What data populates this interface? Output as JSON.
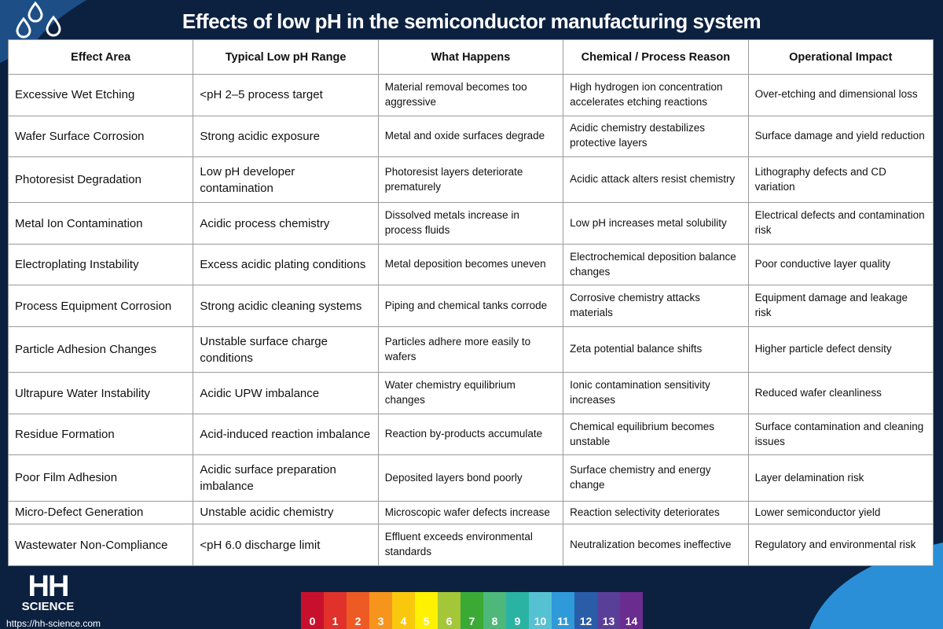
{
  "header": {
    "title": "Effects of low pH in the semiconductor manufacturing system"
  },
  "table": {
    "columns": [
      "Effect Area",
      "Typical Low pH Range",
      "What Happens",
      "Chemical / Process Reason",
      "Operational Impact"
    ],
    "rows": [
      [
        "Excessive Wet Etching",
        "<pH 2–5 process target",
        "Material removal becomes too aggressive",
        "High hydrogen ion concentration accelerates etching reactions",
        "Over-etching and dimensional loss"
      ],
      [
        "Wafer Surface Corrosion",
        "Strong acidic exposure",
        "Metal and oxide surfaces degrade",
        "Acidic chemistry destabilizes protective layers",
        "Surface damage and yield reduction"
      ],
      [
        "Photoresist Degradation",
        "Low pH developer contamination",
        "Photoresist layers deteriorate prematurely",
        "Acidic attack alters resist chemistry",
        "Lithography defects and CD variation"
      ],
      [
        "Metal Ion Contamination",
        "Acidic process chemistry",
        "Dissolved metals increase in process fluids",
        "Low pH increases metal solubility",
        "Electrical defects and contamination risk"
      ],
      [
        "Electroplating Instability",
        "Excess acidic plating conditions",
        "Metal deposition becomes uneven",
        "Electrochemical deposition balance changes",
        "Poor conductive layer quality"
      ],
      [
        "Process Equipment Corrosion",
        "Strong acidic cleaning systems",
        "Piping and chemical tanks corrode",
        "Corrosive chemistry attacks materials",
        "Equipment damage and leakage risk"
      ],
      [
        "Particle Adhesion Changes",
        "Unstable surface charge conditions",
        "Particles adhere more easily to wafers",
        "Zeta potential balance shifts",
        "Higher particle defect density"
      ],
      [
        "Ultrapure Water Instability",
        "Acidic UPW imbalance",
        "Water chemistry equilibrium changes",
        "Ionic contamination sensitivity increases",
        "Reduced wafer cleanliness"
      ],
      [
        "Residue Formation",
        "Acid-induced reaction imbalance",
        "Reaction by-products accumulate",
        "Chemical equilibrium becomes unstable",
        "Surface contamination and cleaning issues"
      ],
      [
        "Poor Film Adhesion",
        "Acidic surface preparation imbalance",
        "Deposited layers bond poorly",
        "Surface chemistry and energy change",
        "Layer delamination risk"
      ],
      [
        "Micro-Defect Generation",
        "Unstable acidic chemistry",
        "Microscopic wafer defects increase",
        "Reaction selectivity deteriorates",
        "Lower semiconductor yield"
      ],
      [
        "Wastewater Non-Compliance",
        "<pH 6.0 discharge limit",
        "Effluent exceeds environmental standards",
        "Neutralization becomes ineffective",
        "Regulatory and environmental risk"
      ]
    ]
  },
  "footer": {
    "logo_top": "HH",
    "logo_bottom": "SCIENCE",
    "url": "https://hh-science.com",
    "ph_scale": [
      0,
      1,
      2,
      3,
      4,
      5,
      6,
      7,
      8,
      9,
      10,
      11,
      12,
      13,
      14
    ]
  }
}
